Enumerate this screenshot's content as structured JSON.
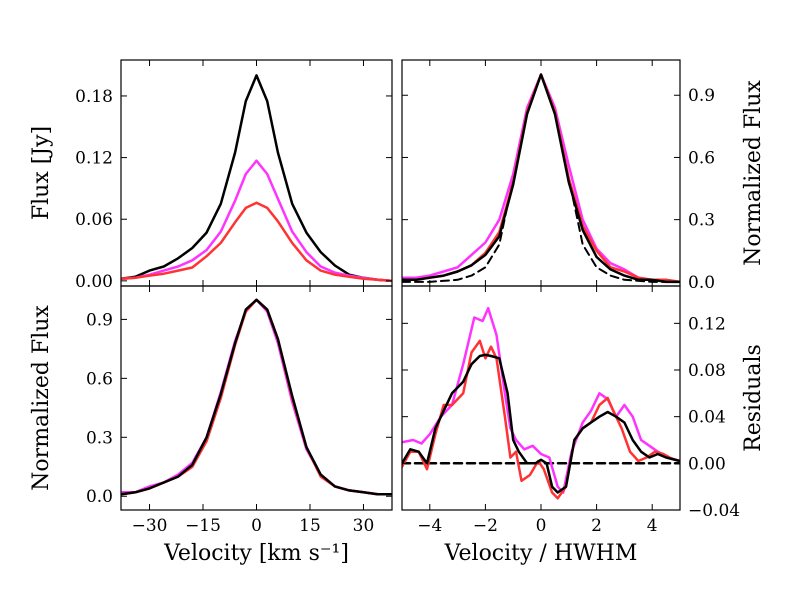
{
  "colors": {
    "black": "#000000",
    "magenta": "#ff33ff",
    "red": "#ff3333"
  },
  "chart_data": [
    {
      "id": "top-left",
      "type": "line",
      "xlabel": "",
      "ylabel": "Flux [Jy]",
      "ylabel_side": "left",
      "xlim": [
        -38,
        38
      ],
      "ylim": [
        -0.005,
        0.215
      ],
      "xticks": [
        -30,
        -15,
        0,
        15,
        30
      ],
      "xtick_labels": [
        "",
        "",
        "",
        "",
        ""
      ],
      "yticks": [
        0.0,
        0.06,
        0.12,
        0.18
      ],
      "ytick_labels": [
        "0.00",
        "0.06",
        "0.12",
        "0.18"
      ],
      "grid": false,
      "series": [
        {
          "color": "black",
          "stroke_width": 2.5,
          "dashed": false,
          "x": [
            -38,
            -34,
            -30,
            -26,
            -22,
            -18,
            -14,
            -10,
            -6,
            -3,
            0,
            3,
            6,
            10,
            14,
            18,
            22,
            26,
            30,
            34,
            38
          ],
          "y": [
            0.002,
            0.004,
            0.01,
            0.014,
            0.022,
            0.032,
            0.047,
            0.075,
            0.125,
            0.175,
            0.2,
            0.175,
            0.125,
            0.075,
            0.047,
            0.028,
            0.015,
            0.006,
            0.003,
            0.001,
            0.0
          ]
        },
        {
          "color": "magenta",
          "stroke_width": 2.5,
          "dashed": false,
          "x": [
            -38,
            -34,
            -30,
            -26,
            -22,
            -18,
            -14,
            -10,
            -6,
            -3,
            0,
            3,
            6,
            10,
            14,
            18,
            22,
            26,
            30,
            34,
            38
          ],
          "y": [
            0.002,
            0.003,
            0.006,
            0.01,
            0.014,
            0.02,
            0.03,
            0.048,
            0.078,
            0.104,
            0.117,
            0.104,
            0.08,
            0.048,
            0.028,
            0.014,
            0.008,
            0.005,
            0.003,
            0.001,
            0.0
          ]
        },
        {
          "color": "red",
          "stroke_width": 2.5,
          "dashed": false,
          "x": [
            -38,
            -34,
            -30,
            -26,
            -22,
            -18,
            -14,
            -10,
            -6,
            -3,
            0,
            3,
            6,
            10,
            14,
            18,
            22,
            26,
            30,
            34,
            38
          ],
          "y": [
            0.002,
            0.003,
            0.005,
            0.007,
            0.01,
            0.013,
            0.024,
            0.037,
            0.057,
            0.071,
            0.076,
            0.071,
            0.058,
            0.037,
            0.02,
            0.01,
            0.006,
            0.004,
            0.002,
            0.001,
            0.0
          ]
        }
      ]
    },
    {
      "id": "top-right",
      "type": "line",
      "xlabel": "",
      "ylabel": "Normalized Flux",
      "ylabel_side": "right",
      "xlim": [
        -5,
        5
      ],
      "ylim": [
        -0.02,
        1.07
      ],
      "xticks": [
        -4,
        -2,
        0,
        2,
        4
      ],
      "xtick_labels": [
        "",
        "",
        "",
        "",
        ""
      ],
      "yticks": [
        0.0,
        0.3,
        0.6,
        0.9
      ],
      "ytick_labels": [
        "0.0",
        "0.3",
        "0.6",
        "0.9"
      ],
      "grid": false,
      "series": [
        {
          "color": "black",
          "stroke_width": 2,
          "dashed": true,
          "x": [
            -5,
            -4,
            -3,
            -2.5,
            -2,
            -1.5,
            -1,
            -0.5,
            0,
            0.5,
            1,
            1.5,
            2,
            2.5,
            3,
            4,
            5
          ],
          "y": [
            0,
            0,
            0.01,
            0.03,
            0.07,
            0.18,
            0.5,
            0.82,
            1.0,
            0.82,
            0.5,
            0.18,
            0.07,
            0.03,
            0.01,
            0,
            0
          ]
        },
        {
          "color": "magenta",
          "stroke_width": 2.5,
          "dashed": false,
          "x": [
            -5,
            -4.5,
            -4,
            -3.5,
            -3,
            -2.5,
            -2,
            -1.5,
            -1,
            -0.5,
            0,
            0.5,
            1,
            1.5,
            2,
            2.5,
            3,
            3.5,
            4,
            4.5,
            5
          ],
          "y": [
            0.02,
            0.02,
            0.03,
            0.05,
            0.07,
            0.13,
            0.19,
            0.3,
            0.52,
            0.84,
            1.0,
            0.84,
            0.56,
            0.3,
            0.16,
            0.09,
            0.06,
            0.02,
            0.01,
            0.01,
            0.0
          ]
        },
        {
          "color": "red",
          "stroke_width": 2.5,
          "dashed": false,
          "x": [
            -5,
            -4.5,
            -4,
            -3.5,
            -3,
            -2.5,
            -2,
            -1.5,
            -1,
            -0.5,
            0,
            0.5,
            1,
            1.5,
            2,
            2.5,
            3,
            3.5,
            4,
            4.5,
            5
          ],
          "y": [
            0.01,
            0.01,
            0.02,
            0.03,
            0.05,
            0.08,
            0.14,
            0.24,
            0.48,
            0.82,
            1.0,
            0.82,
            0.5,
            0.27,
            0.15,
            0.07,
            0.05,
            0.02,
            0.01,
            0.01,
            0.0
          ]
        },
        {
          "color": "black",
          "stroke_width": 2.5,
          "dashed": false,
          "x": [
            -5,
            -4.5,
            -4,
            -3.5,
            -3,
            -2.5,
            -2,
            -1.5,
            -1,
            -0.5,
            0,
            0.5,
            1,
            1.5,
            2,
            2.5,
            3,
            3.5,
            4,
            4.5,
            5
          ],
          "y": [
            0.01,
            0.01,
            0.02,
            0.03,
            0.05,
            0.08,
            0.13,
            0.22,
            0.47,
            0.81,
            1.0,
            0.81,
            0.48,
            0.25,
            0.12,
            0.06,
            0.03,
            0.01,
            0.01,
            0.0,
            0.0
          ]
        }
      ]
    },
    {
      "id": "bottom-left",
      "type": "line",
      "xlabel": "Velocity [km s⁻¹]",
      "ylabel": "Normalized Flux",
      "ylabel_side": "left",
      "xlim": [
        -38,
        38
      ],
      "ylim": [
        -0.07,
        1.07
      ],
      "xticks": [
        -30,
        -15,
        0,
        15,
        30
      ],
      "xtick_labels": [
        "−30",
        "−15",
        "0",
        "15",
        "30"
      ],
      "yticks": [
        0.0,
        0.3,
        0.6,
        0.9
      ],
      "ytick_labels": [
        "0.0",
        "0.3",
        "0.6",
        "0.9"
      ],
      "grid": false,
      "series": [
        {
          "color": "magenta",
          "stroke_width": 2.5,
          "dashed": false,
          "x": [
            -38,
            -34,
            -30,
            -26,
            -22,
            -18,
            -14,
            -10,
            -6,
            -3,
            0,
            3,
            6,
            10,
            14,
            18,
            22,
            26,
            30,
            34,
            38
          ],
          "y": [
            0.02,
            0.02,
            0.05,
            0.07,
            0.11,
            0.17,
            0.3,
            0.53,
            0.79,
            0.94,
            1.0,
            0.94,
            0.78,
            0.48,
            0.24,
            0.11,
            0.05,
            0.03,
            0.02,
            0.01,
            0.01
          ]
        },
        {
          "color": "red",
          "stroke_width": 2.5,
          "dashed": false,
          "x": [
            -38,
            -34,
            -30,
            -26,
            -22,
            -18,
            -14,
            -10,
            -6,
            -3,
            0,
            3,
            6,
            10,
            14,
            18,
            22,
            26,
            30,
            34,
            38
          ],
          "y": [
            0.01,
            0.02,
            0.04,
            0.07,
            0.1,
            0.15,
            0.28,
            0.5,
            0.77,
            0.94,
            1.0,
            0.95,
            0.8,
            0.5,
            0.25,
            0.1,
            0.05,
            0.03,
            0.02,
            0.01,
            0.01
          ]
        },
        {
          "color": "black",
          "stroke_width": 2.5,
          "dashed": false,
          "x": [
            -38,
            -34,
            -30,
            -26,
            -22,
            -18,
            -14,
            -10,
            -6,
            -3,
            0,
            3,
            6,
            10,
            14,
            18,
            22,
            26,
            30,
            34,
            38
          ],
          "y": [
            0.01,
            0.02,
            0.04,
            0.07,
            0.1,
            0.16,
            0.3,
            0.52,
            0.78,
            0.95,
            1.0,
            0.95,
            0.8,
            0.51,
            0.25,
            0.11,
            0.05,
            0.03,
            0.02,
            0.01,
            0.01
          ]
        }
      ]
    },
    {
      "id": "bottom-right",
      "type": "line",
      "xlabel": "Velocity / HWHM",
      "ylabel": "Residuals",
      "ylabel_side": "right",
      "xlim": [
        -5,
        5
      ],
      "ylim": [
        -0.04,
        0.152
      ],
      "xticks": [
        -4,
        -2,
        0,
        2,
        4
      ],
      "xtick_labels": [
        "−4",
        "−2",
        "0",
        "2",
        "4"
      ],
      "yticks": [
        -0.04,
        0.0,
        0.04,
        0.08,
        0.12
      ],
      "ytick_labels": [
        "−0.04",
        "0.00",
        "0.04",
        "0.08",
        "0.12"
      ],
      "grid": false,
      "series": [
        {
          "color": "black",
          "stroke_width": 2.5,
          "dashed": true,
          "x": [
            -5,
            5
          ],
          "y": [
            0.0,
            0.0
          ]
        },
        {
          "color": "magenta",
          "stroke_width": 2.5,
          "dashed": false,
          "x": [
            -5,
            -4.6,
            -4.3,
            -4,
            -3.6,
            -3.2,
            -2.8,
            -2.4,
            -2.1,
            -1.9,
            -1.6,
            -1.3,
            -1.1,
            -0.9,
            -0.6,
            -0.3,
            0,
            0.3,
            0.6,
            0.8,
            1.1,
            1.5,
            1.8,
            2.1,
            2.4,
            2.7,
            3,
            3.3,
            3.6,
            3.9,
            4.2,
            4.6,
            5
          ],
          "y": [
            0.018,
            0.02,
            0.017,
            0.025,
            0.04,
            0.05,
            0.085,
            0.125,
            0.122,
            0.133,
            0.11,
            0.06,
            0.03,
            0.02,
            0.012,
            0.015,
            0.008,
            0.005,
            -0.02,
            -0.025,
            0.01,
            0.035,
            0.045,
            0.06,
            0.055,
            0.04,
            0.05,
            0.04,
            0.02,
            0.015,
            0.01,
            0.005,
            0.002
          ]
        },
        {
          "color": "red",
          "stroke_width": 2.5,
          "dashed": false,
          "x": [
            -5,
            -4.7,
            -4.4,
            -4.1,
            -3.8,
            -3.5,
            -3.2,
            -2.8,
            -2.5,
            -2.2,
            -2.0,
            -1.8,
            -1.6,
            -1.3,
            -1.1,
            -0.9,
            -0.7,
            -0.4,
            -0.1,
            0.1,
            0.4,
            0.6,
            0.9,
            1.2,
            1.5,
            1.8,
            2.1,
            2.4,
            2.6,
            2.9,
            3.2,
            3.5,
            3.8,
            4.1,
            4.4,
            4.7,
            5
          ],
          "y": [
            -0.003,
            0.01,
            0.01,
            -0.005,
            0.025,
            0.05,
            0.05,
            0.06,
            0.095,
            0.105,
            0.09,
            0.1,
            0.09,
            0.04,
            0.005,
            0.01,
            -0.015,
            -0.01,
            0.002,
            -0.005,
            -0.025,
            -0.03,
            -0.02,
            0.02,
            0.03,
            0.035,
            0.05,
            0.056,
            0.045,
            0.03,
            0.01,
            0.002,
            0.005,
            0.01,
            0.008,
            0.004,
            0.002
          ]
        },
        {
          "color": "black",
          "stroke_width": 2.5,
          "dashed": false,
          "x": [
            -5,
            -4.7,
            -4.4,
            -4.1,
            -3.8,
            -3.5,
            -3.2,
            -2.8,
            -2.5,
            -2.2,
            -2.0,
            -1.8,
            -1.5,
            -1.2,
            -1.0,
            -0.8,
            -0.5,
            -0.2,
            0,
            0.2,
            0.4,
            0.6,
            0.9,
            1.2,
            1.5,
            1.8,
            2.1,
            2.4,
            2.7,
            3.0,
            3.3,
            3.6,
            3.9,
            4.2,
            4.5,
            5
          ],
          "y": [
            0.0,
            0.012,
            0.01,
            0.0,
            0.03,
            0.045,
            0.06,
            0.07,
            0.085,
            0.092,
            0.093,
            0.092,
            0.09,
            0.06,
            0.02,
            0.01,
            0.0,
            0.0,
            0.003,
            0.0,
            -0.02,
            -0.025,
            -0.02,
            0.02,
            0.03,
            0.035,
            0.04,
            0.044,
            0.04,
            0.035,
            0.02,
            0.01,
            0.005,
            0.008,
            0.005,
            0.002
          ]
        }
      ]
    }
  ]
}
